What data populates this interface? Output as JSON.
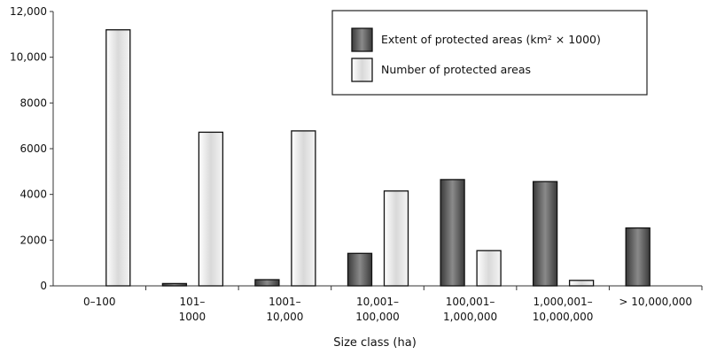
{
  "chart_data": {
    "type": "bar",
    "title": "",
    "xlabel": "Size class (ha)",
    "ylabel": "",
    "ylim": [
      0,
      12000
    ],
    "yticks": [
      0,
      2000,
      4000,
      6000,
      8000,
      10000,
      12000
    ],
    "ytick_labels": [
      "0",
      "2000",
      "4000",
      "6000",
      "8000",
      "10,000",
      "12,000"
    ],
    "categories": [
      [
        "0–100"
      ],
      [
        "101–",
        "1000"
      ],
      [
        "1001–",
        "10,000"
      ],
      [
        "10,001–",
        "100,000"
      ],
      [
        "100,001–",
        "1,000,000"
      ],
      [
        "1,000,001–",
        "10,000,000"
      ],
      [
        "> 10,000,000"
      ]
    ],
    "series": [
      {
        "name": "Extent of protected areas (km² × 1000)",
        "color": "#6f6f6f",
        "values": [
          0,
          100,
          270,
          1420,
          4650,
          4560,
          2530
        ]
      },
      {
        "name": "Number of protected areas",
        "color": "#e8e8e8",
        "values": [
          11200,
          6720,
          6780,
          4150,
          1540,
          240,
          0
        ]
      }
    ],
    "legend_position": "top-right",
    "grid": false
  }
}
